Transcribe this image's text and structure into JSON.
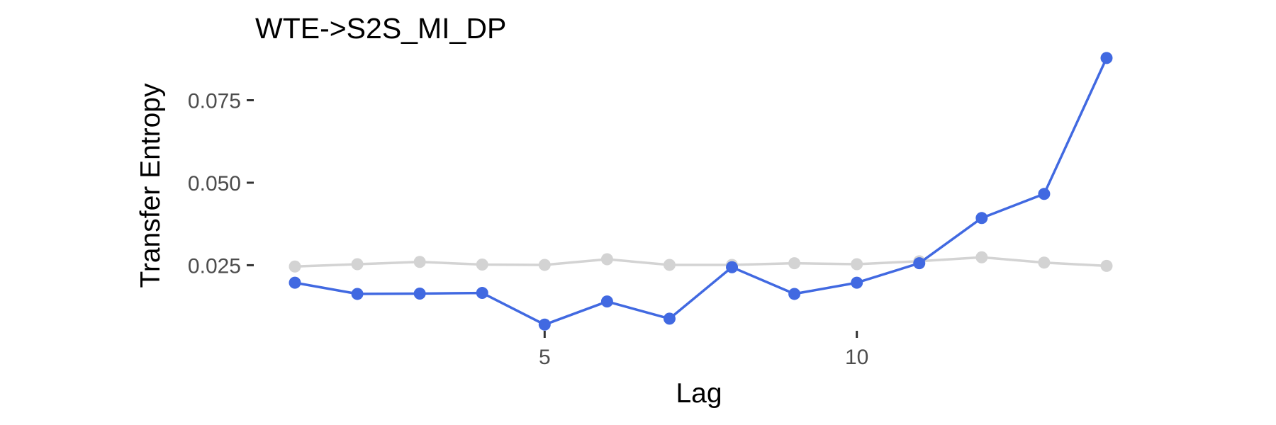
{
  "chart_data": {
    "type": "line",
    "title": "WTE->S2S_MI_DP",
    "xlabel": "Lag",
    "ylabel": "Transfer Entropy",
    "xlim": [
      1,
      14
    ],
    "ylim": [
      0.0062,
      0.0882
    ],
    "x_ticks": [
      5,
      10
    ],
    "x_tick_labels": [
      "5",
      "10"
    ],
    "y_ticks": [
      0.025,
      0.05,
      0.075
    ],
    "y_tick_labels": [
      "0.025",
      "0.050",
      "0.075"
    ],
    "grid": false,
    "legend": "none",
    "x": [
      1,
      2,
      3,
      4,
      5,
      6,
      7,
      8,
      9,
      10,
      11,
      12,
      13,
      14
    ],
    "series": [
      {
        "color": "#d3d3d3",
        "values": [
          0.0246,
          0.0253,
          0.026,
          0.0252,
          0.0251,
          0.0268,
          0.0251,
          0.0251,
          0.0256,
          0.0253,
          0.0262,
          0.0274,
          0.0258,
          0.0248
        ]
      },
      {
        "color": "#4169e1",
        "values": [
          0.0197,
          0.0163,
          0.0164,
          0.0166,
          0.007,
          0.014,
          0.0088,
          0.0244,
          0.0163,
          0.0197,
          0.0256,
          0.0393,
          0.0466,
          0.0878
        ]
      }
    ]
  }
}
